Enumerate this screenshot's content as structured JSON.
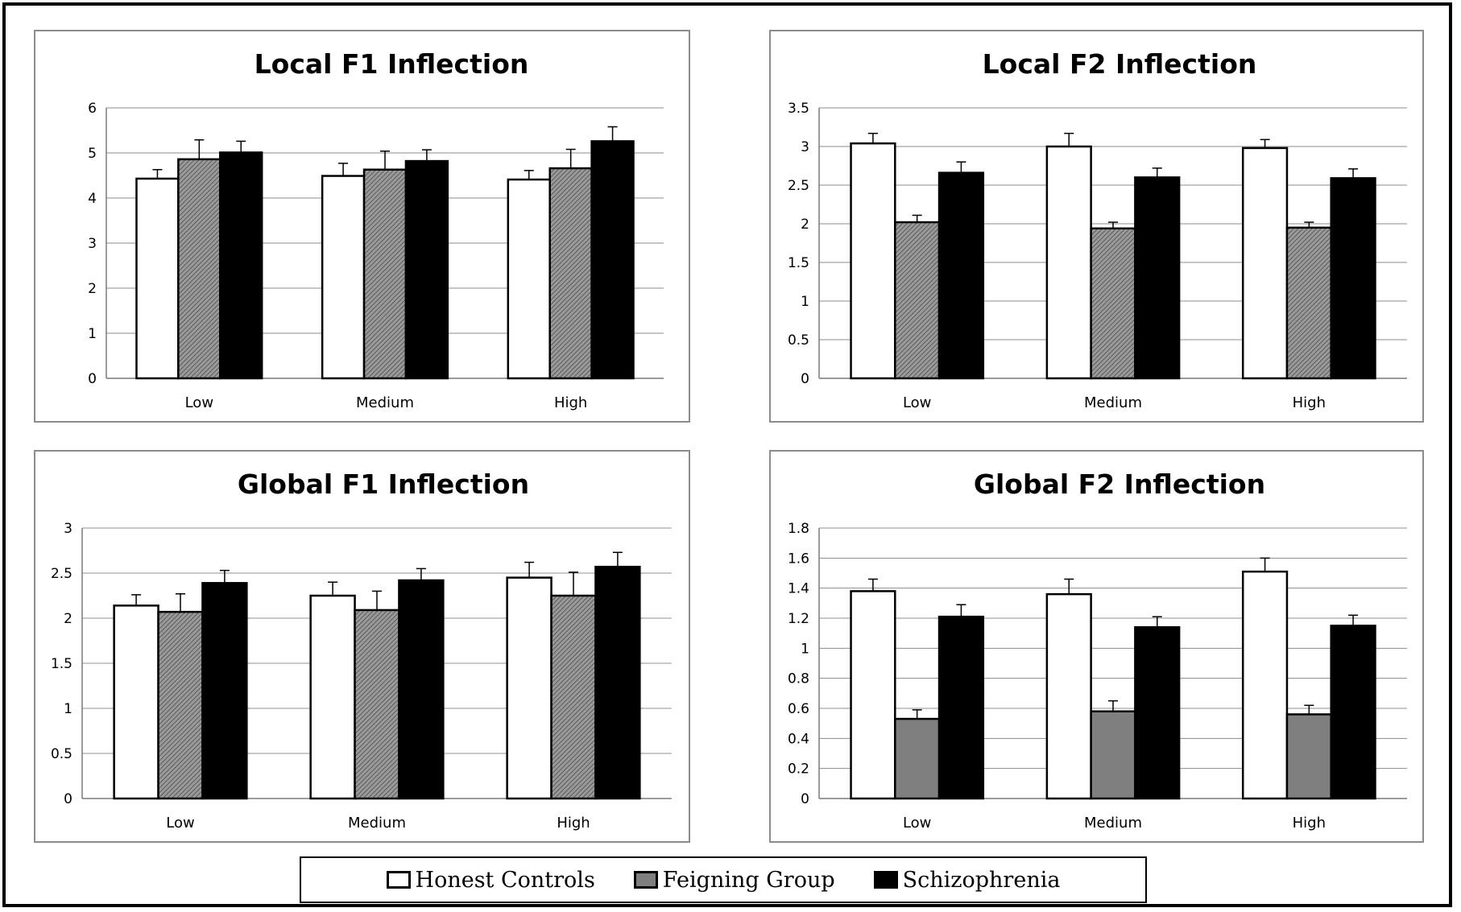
{
  "colors": {
    "honest": "#ffffff",
    "feigning": "#7f7f7f",
    "schizophrenia": "#000000",
    "grid": "#8c8c8c"
  },
  "legend": {
    "items": [
      {
        "label": "Honest Controls",
        "color": "#ffffff"
      },
      {
        "label": "Feigning Group",
        "color": "#7f7f7f"
      },
      {
        "label": "Schizophrenia",
        "color": "#000000"
      }
    ]
  },
  "chart_data": [
    {
      "type": "bar",
      "title": "Local F1 Inflection",
      "categories": [
        "Low",
        "Medium",
        "High"
      ],
      "yticks": [
        "0",
        "1",
        "2",
        "3",
        "4",
        "5",
        "6"
      ],
      "ylim": [
        0,
        6
      ],
      "grid": true,
      "pattern": "hatched",
      "series": [
        {
          "name": "Honest Controls",
          "values": [
            4.43,
            4.49,
            4.41
          ],
          "errors": [
            0.2,
            0.28,
            0.2
          ]
        },
        {
          "name": "Feigning Group",
          "values": [
            4.86,
            4.63,
            4.66
          ],
          "errors": [
            0.43,
            0.41,
            0.42
          ]
        },
        {
          "name": "Schizophrenia",
          "values": [
            5.01,
            4.82,
            5.26
          ],
          "errors": [
            0.25,
            0.25,
            0.32
          ]
        }
      ]
    },
    {
      "type": "bar",
      "title": "Local F2 Inflection",
      "categories": [
        "Low",
        "Medium",
        "High"
      ],
      "yticks": [
        "0",
        "0.5",
        "1",
        "1.5",
        "2",
        "2.5",
        "3",
        "3.5"
      ],
      "ylim": [
        0,
        3.5
      ],
      "grid": true,
      "pattern": "hatched",
      "series": [
        {
          "name": "Honest Controls",
          "values": [
            3.04,
            3.0,
            2.98
          ],
          "errors": [
            0.13,
            0.17,
            0.11
          ]
        },
        {
          "name": "Feigning Group",
          "values": [
            2.02,
            1.94,
            1.95
          ],
          "errors": [
            0.09,
            0.08,
            0.07
          ]
        },
        {
          "name": "Schizophrenia",
          "values": [
            2.66,
            2.6,
            2.59
          ],
          "errors": [
            0.14,
            0.12,
            0.12
          ]
        }
      ]
    },
    {
      "type": "bar",
      "title": "Global F1 Inflection",
      "categories": [
        "Low",
        "Medium",
        "High"
      ],
      "yticks": [
        "0",
        "0.5",
        "1",
        "1.5",
        "2",
        "2.5",
        "3"
      ],
      "ylim": [
        0,
        3
      ],
      "grid": true,
      "pattern": "hatched",
      "series": [
        {
          "name": "Honest Controls",
          "values": [
            2.14,
            2.25,
            2.45
          ],
          "errors": [
            0.12,
            0.15,
            0.17
          ]
        },
        {
          "name": "Feigning Group",
          "values": [
            2.07,
            2.09,
            2.25
          ],
          "errors": [
            0.2,
            0.21,
            0.26
          ]
        },
        {
          "name": "Schizophrenia",
          "values": [
            2.39,
            2.42,
            2.57
          ],
          "errors": [
            0.14,
            0.13,
            0.16
          ]
        }
      ]
    },
    {
      "type": "bar",
      "title": "Global F2 Inflection",
      "categories": [
        "Low",
        "Medium",
        "High"
      ],
      "yticks": [
        "0",
        "0.2",
        "0.4",
        "0.6",
        "0.8",
        "1",
        "1.2",
        "1.4",
        "1.6",
        "1.8"
      ],
      "ylim": [
        0,
        1.8
      ],
      "grid": true,
      "pattern": "solid",
      "series": [
        {
          "name": "Honest Controls",
          "values": [
            1.38,
            1.36,
            1.51
          ],
          "errors": [
            0.08,
            0.1,
            0.09
          ]
        },
        {
          "name": "Feigning Group",
          "values": [
            0.53,
            0.58,
            0.56
          ],
          "errors": [
            0.06,
            0.07,
            0.06
          ]
        },
        {
          "name": "Schizophrenia",
          "values": [
            1.21,
            1.14,
            1.15
          ],
          "errors": [
            0.08,
            0.07,
            0.07
          ]
        }
      ]
    }
  ]
}
